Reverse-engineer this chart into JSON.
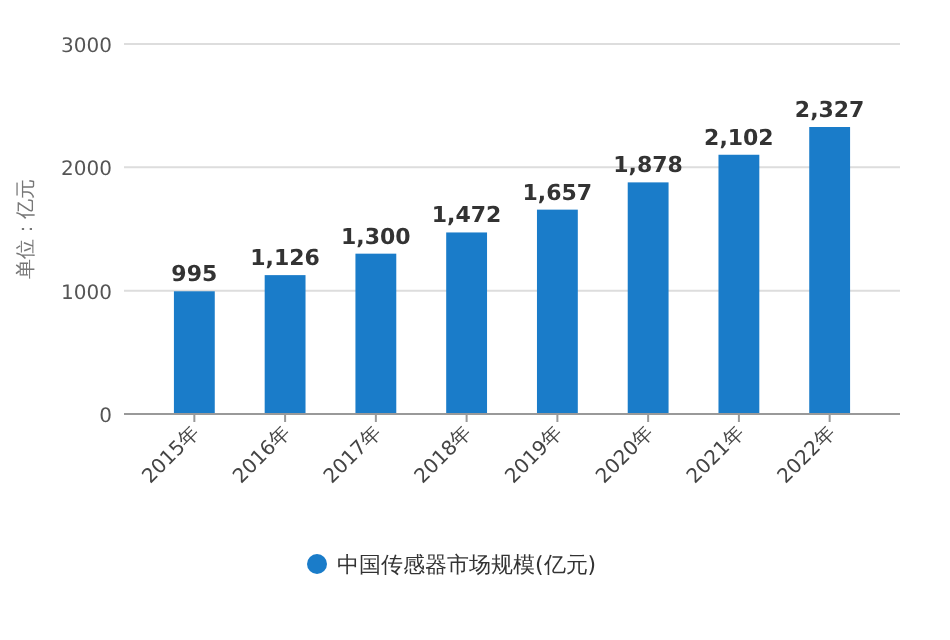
{
  "chart_data": {
    "type": "bar",
    "ylabel": "单位：亿元",
    "categories": [
      "2015年",
      "2016年",
      "2017年",
      "2018年",
      "2019年",
      "2020年",
      "2021年",
      "2022年"
    ],
    "series": [
      {
        "name": "中国传感器市场规模(亿元)",
        "color": "#1a7cc9",
        "values": [
          995,
          1126,
          1300,
          1472,
          1657,
          1878,
          2102,
          2327
        ],
        "value_labels": [
          "995",
          "1,126",
          "1,300",
          "1,472",
          "1,657",
          "1,878",
          "2,102",
          "2,327"
        ]
      }
    ],
    "ylim": [
      0,
      3000
    ],
    "yticks": [
      0,
      1000,
      2000,
      3000
    ],
    "grid": "y",
    "legend": "bottom"
  }
}
